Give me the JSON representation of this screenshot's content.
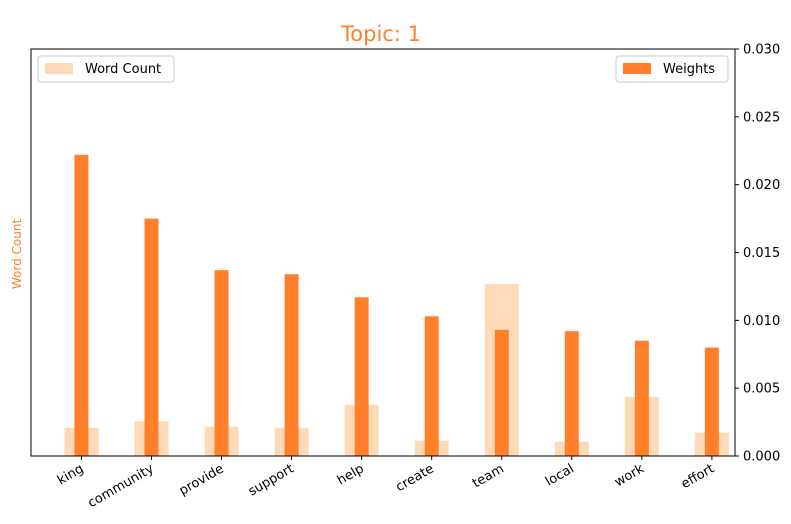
{
  "chart_data": {
    "type": "bar",
    "title": "Topic: 1",
    "ylabel_left": "Word Count",
    "categories": [
      "king",
      "community",
      "provide",
      "support",
      "help",
      "create",
      "team",
      "local",
      "work",
      "effort"
    ],
    "series": [
      {
        "name": "Word Count",
        "axis": "left",
        "color": "#ffdab9",
        "values": [
          2.2,
          2.7,
          2.3,
          2.2,
          4.0,
          1.2,
          13.4,
          1.1,
          4.6,
          1.8
        ]
      },
      {
        "name": "Weights",
        "axis": "right",
        "color": "#ff7f2a",
        "values": [
          0.0222,
          0.0175,
          0.0137,
          0.0134,
          0.0117,
          0.0103,
          0.0093,
          0.0092,
          0.0085,
          0.008
        ]
      }
    ],
    "y_left_lim": [
      0,
      31.7
    ],
    "y_right_lim": [
      0,
      0.03
    ],
    "y_right_ticks": [
      "0.000",
      "0.005",
      "0.010",
      "0.015",
      "0.020",
      "0.025",
      "0.030"
    ],
    "legend": [
      {
        "label": "Word Count",
        "placement": "upper-left"
      },
      {
        "label": "Weights",
        "placement": "upper-right"
      }
    ],
    "title_color": "#ff7f2a",
    "ylabel_color": "#ff7f2a"
  }
}
